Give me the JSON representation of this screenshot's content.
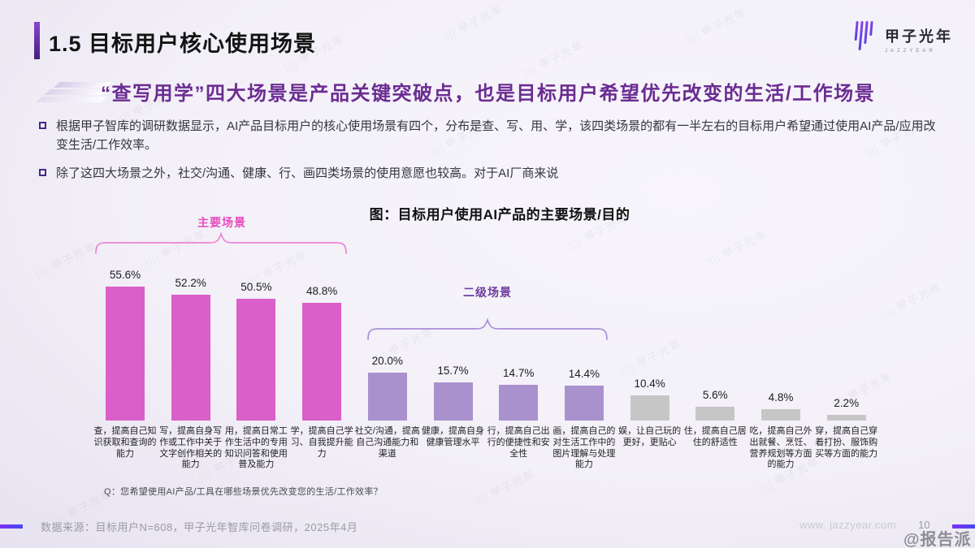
{
  "slide": {
    "title": "1.5 目标用户核心使用场景",
    "subtitle": "“查写用学”四大场景是产品关键突破点，也是目标用户希望优先改变的生活/工作场景",
    "bullets": [
      "根据甲子智库的调研数据显示，AI产品目标用户的核心使用场景有四个，分布是查、写、用、学，该四类场景的都有一半左右的目标用户希望通过使用AI产品/应用改变生活/工作效率。",
      "除了这四大场景之外，社交/沟通、健康、行、画四类场景的使用意愿也较高。对于AI厂商来说"
    ]
  },
  "logo": {
    "text": "甲子光年",
    "subtext": "JAZZYEAR"
  },
  "watermark_text": "甲子光年",
  "chart_data": {
    "type": "bar",
    "title": "图：目标用户使用AI产品的主要场景/目的",
    "categories": [
      "查，提高自己知识获取和查询的能力",
      "写，提高自身写作或工作中关于文字创作相关的能力",
      "用，提高日常工作生活中的专用知识问答和使用普及能力",
      "学，提高自己学习、自我提升能力",
      "社交/沟通，提高自己沟通能力和渠道",
      "健康，提高自身健康管理水平",
      "行，提高自己出行的便捷性和安全性",
      "画，提高自己的对生活工作中的图片理解与处理能力",
      "娱，让自己玩的更好，更贴心",
      "住，提高自己居住的舒适性",
      "吃，提高自己外出就餐、烹饪、营养规划等方面的能力",
      "穿，提高自己穿着打扮、服饰购买等方面的能力"
    ],
    "values": [
      55.6,
      52.2,
      50.5,
      48.8,
      20.0,
      15.7,
      14.7,
      14.4,
      10.4,
      5.6,
      4.8,
      2.2
    ],
    "value_labels": [
      "55.6%",
      "52.2%",
      "50.5%",
      "48.8%",
      "20.0%",
      "15.7%",
      "14.7%",
      "14.4%",
      "10.4%",
      "5.6%",
      "4.8%",
      "2.2%"
    ],
    "groups": [
      {
        "label": "主要场景",
        "range": [
          0,
          3
        ],
        "bar_color": "#da5fc8",
        "label_color": "#e84cbe"
      },
      {
        "label": "二级场景",
        "range": [
          4,
          7
        ],
        "bar_color": "#a991ce",
        "label_color": "#6d3e9e"
      },
      {
        "label": "",
        "range": [
          8,
          11
        ],
        "bar_color": "#c6c6c6",
        "label_color": "#888888"
      }
    ],
    "ylim": [
      0,
      60
    ],
    "grid": false,
    "legend": "none",
    "question_note": "Q：您希望使用AI产品/工具在哪些场景优先改变您的生活/工作效率？"
  },
  "footer": {
    "source": "数据来源：目标用户N=608，甲子光年智库问卷调研，2025年4月",
    "website": "www. jazzyear.com",
    "page_number": "10",
    "watermark": "@报告派"
  }
}
